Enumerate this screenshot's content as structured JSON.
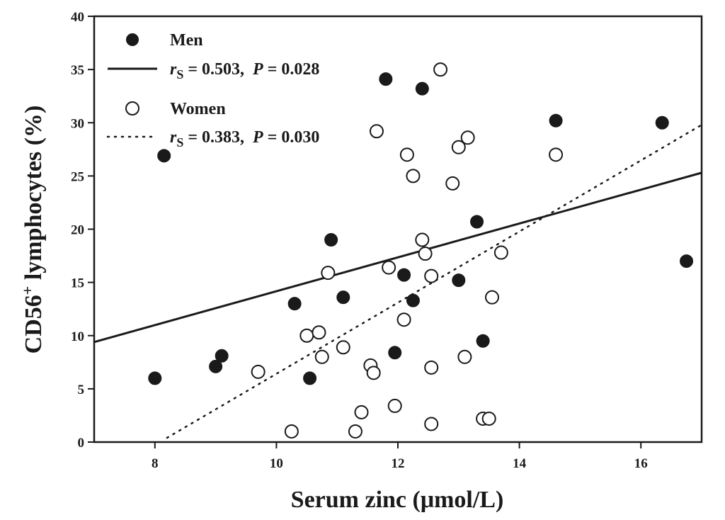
{
  "chart_data": {
    "type": "scatter",
    "xlabel": "Serum zinc (μmol/L)",
    "ylabel_main": "CD56",
    "ylabel_sup": "+",
    "ylabel_rest": " lymphocytes (%)",
    "xlim": [
      7,
      17
    ],
    "ylim": [
      0,
      40
    ],
    "x_ticks": [
      8,
      10,
      12,
      14,
      16
    ],
    "y_ticks": [
      0,
      5,
      10,
      15,
      20,
      25,
      30,
      35,
      40
    ],
    "grid": false,
    "legend_position": "top-left",
    "series": [
      {
        "name": "Men",
        "marker": "filled-circle",
        "color": "#1a1a1a",
        "points": [
          [
            8.0,
            6.0
          ],
          [
            8.15,
            26.9
          ],
          [
            9.0,
            7.1
          ],
          [
            9.1,
            8.1
          ],
          [
            10.3,
            13.0
          ],
          [
            10.55,
            6.0
          ],
          [
            10.9,
            19.0
          ],
          [
            11.1,
            13.6
          ],
          [
            11.8,
            34.1
          ],
          [
            11.95,
            8.4
          ],
          [
            12.1,
            15.7
          ],
          [
            12.25,
            13.3
          ],
          [
            12.4,
            33.2
          ],
          [
            13.0,
            15.2
          ],
          [
            13.3,
            20.7
          ],
          [
            13.4,
            9.5
          ],
          [
            14.6,
            30.2
          ],
          [
            16.35,
            30.0
          ],
          [
            16.75,
            17.0
          ]
        ]
      },
      {
        "name": "Women",
        "marker": "open-circle",
        "color": "#1a1a1a",
        "points": [
          [
            9.7,
            6.6
          ],
          [
            10.25,
            1.0
          ],
          [
            10.5,
            10.0
          ],
          [
            10.7,
            10.3
          ],
          [
            10.75,
            8.0
          ],
          [
            10.85,
            15.9
          ],
          [
            11.1,
            8.9
          ],
          [
            11.3,
            1.0
          ],
          [
            11.4,
            2.8
          ],
          [
            11.55,
            7.2
          ],
          [
            11.6,
            6.5
          ],
          [
            11.65,
            29.2
          ],
          [
            11.85,
            16.4
          ],
          [
            11.95,
            3.4
          ],
          [
            12.1,
            11.5
          ],
          [
            12.15,
            27.0
          ],
          [
            12.25,
            25.0
          ],
          [
            12.4,
            19.0
          ],
          [
            12.45,
            17.7
          ],
          [
            12.55,
            15.6
          ],
          [
            12.55,
            7.0
          ],
          [
            12.55,
            1.7
          ],
          [
            12.7,
            35.0
          ],
          [
            12.9,
            24.3
          ],
          [
            13.0,
            27.7
          ],
          [
            13.1,
            8.0
          ],
          [
            13.15,
            28.6
          ],
          [
            13.4,
            2.2
          ],
          [
            13.5,
            2.2
          ],
          [
            13.55,
            13.6
          ],
          [
            13.7,
            17.8
          ],
          [
            14.6,
            27.0
          ]
        ]
      }
    ],
    "regression_lines": [
      {
        "series": "Men",
        "style": "solid",
        "x": [
          7,
          17
        ],
        "y": [
          9.4,
          25.3
        ]
      },
      {
        "series": "Women",
        "style": "dotted",
        "x": [
          8.2,
          17
        ],
        "y": [
          0.4,
          29.8
        ]
      }
    ],
    "legend": [
      {
        "name": "Men",
        "label": "Men"
      },
      {
        "name": "Men-fit",
        "r_label": "r",
        "r_sub": "S",
        "r_value": " = 0.503,  ",
        "p_label": "P",
        "p_value": " = 0.028"
      },
      {
        "name": "Women",
        "label": "Women"
      },
      {
        "name": "Women-fit",
        "r_label": "r",
        "r_sub": "S",
        "r_value": " = 0.383,  ",
        "p_label": "P",
        "p_value": " = 0.030"
      }
    ]
  }
}
